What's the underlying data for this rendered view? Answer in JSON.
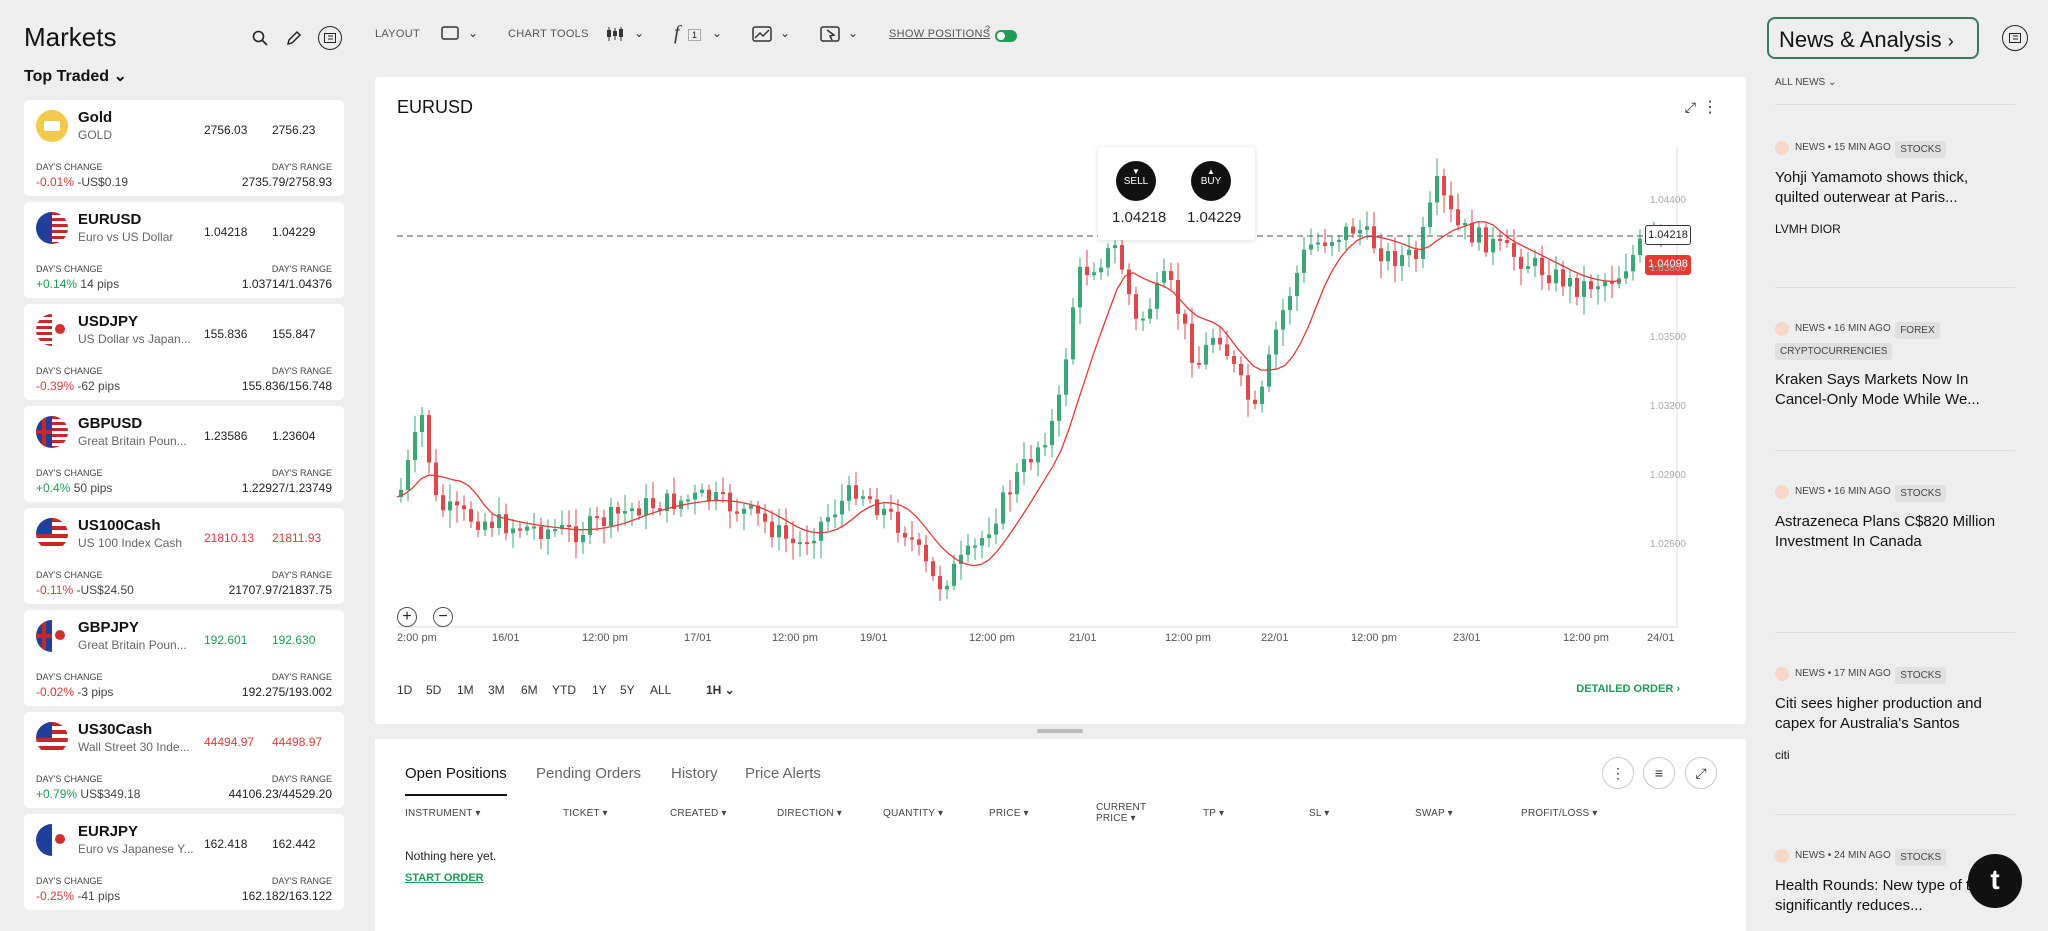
{
  "markets": {
    "title": "Markets",
    "filter": "Top Traded",
    "instruments": [
      {
        "name": "Gold",
        "sub": "GOLD",
        "bid": "2756.03",
        "ask": "2756.23",
        "change_label": "DAY'S CHANGE",
        "change": "-0.01%",
        "change_extra": "-US$0.19",
        "range_label": "DAY'S RANGE",
        "range": "2735.79/2758.93",
        "dir": "down"
      },
      {
        "name": "EURUSD",
        "sub": "Euro vs US Dollar",
        "bid": "1.04218",
        "ask": "1.04229",
        "change_label": "DAY'S CHANGE",
        "change": "+0.14%",
        "change_extra": "14 pips",
        "range_label": "DAY'S RANGE",
        "range": "1.03714/1.04376",
        "dir": "up"
      },
      {
        "name": "USDJPY",
        "sub": "US Dollar vs Japan...",
        "bid": "155.836",
        "ask": "155.847",
        "change_label": "DAY'S CHANGE",
        "change": "-0.39%",
        "change_extra": "-62 pips",
        "range_label": "DAY'S RANGE",
        "range": "155.836/156.748",
        "dir": "down"
      },
      {
        "name": "GBPUSD",
        "sub": "Great Britain Poun...",
        "bid": "1.23586",
        "ask": "1.23604",
        "change_label": "DAY'S CHANGE",
        "change": "+0.4%",
        "change_extra": "50 pips",
        "range_label": "DAY'S RANGE",
        "range": "1.22927/1.23749",
        "dir": "up"
      },
      {
        "name": "US100Cash",
        "sub": "US 100 Index Cash",
        "bid": "21810.13",
        "ask": "21811.93",
        "change_label": "DAY'S CHANGE",
        "change": "-0.11%",
        "change_extra": "-US$24.50",
        "range_label": "DAY'S RANGE",
        "range": "21707.97/21837.75",
        "dir": "down"
      },
      {
        "name": "GBPJPY",
        "sub": "Great Britain Poun...",
        "bid": "192.601",
        "ask": "192.630",
        "change_label": "DAY'S CHANGE",
        "change": "-0.02%",
        "change_extra": "-3 pips",
        "range_label": "DAY'S RANGE",
        "range": "192.275/193.002",
        "dir": "down"
      },
      {
        "name": "US30Cash",
        "sub": "Wall Street 30 Inde...",
        "bid": "44494.97",
        "ask": "44498.97",
        "change_label": "DAY'S CHANGE",
        "change": "+0.79%",
        "change_extra": "US$349.18",
        "range_label": "DAY'S RANGE",
        "range": "44106.23/44529.20",
        "dir": "up"
      },
      {
        "name": "EURJPY",
        "sub": "Euro vs Japanese Y...",
        "bid": "162.418",
        "ask": "162.442",
        "change_label": "DAY'S CHANGE",
        "change": "-0.25%",
        "change_extra": "-41 pips",
        "range_label": "DAY'S RANGE",
        "range": "162.182/163.122",
        "dir": "down"
      }
    ]
  },
  "toolbar": {
    "layout": "LAYOUT",
    "chart_tools": "CHART TOOLS",
    "show_positions": "SHOW POSITIONS",
    "function_count": "1",
    "help": "?"
  },
  "chart": {
    "symbol": "EURUSD",
    "sell_label": "SELL",
    "buy_label": "BUY",
    "sell_price": "1.04218",
    "buy_price": "1.04229",
    "current_tag": "1.04218",
    "ma_tag": "1.04098",
    "price_labels": [
      "1.04400",
      "1.03800",
      "1.03500",
      "1.03200",
      "1.02900",
      "1.02600"
    ],
    "time_labels": [
      "2:00 pm",
      "16/01",
      "12:00 pm",
      "17/01",
      "12:00 pm",
      "19/01",
      "12:00 pm",
      "21/01",
      "12:00 pm",
      "22/01",
      "12:00 pm",
      "23/01",
      "12:00 pm",
      "24/01"
    ],
    "ranges": [
      "1D",
      "5D",
      "1M",
      "3M",
      "6M",
      "YTD",
      "1Y",
      "5Y",
      "ALL"
    ],
    "interval": "1H",
    "detailed_order": "DETAILED ORDER"
  },
  "positions": {
    "tabs": [
      "Open Positions",
      "Pending Orders",
      "History",
      "Price Alerts"
    ],
    "columns": [
      "INSTRUMENT",
      "TICKET",
      "CREATED",
      "DIRECTION",
      "QUANTITY",
      "PRICE",
      "CURRENT PRICE",
      "TP",
      "SL",
      "SWAP",
      "PROFIT/LOSS"
    ],
    "empty": "Nothing here yet.",
    "start_order": "START ORDER"
  },
  "news": {
    "button": "News & Analysis",
    "filter": "ALL NEWS",
    "items": [
      {
        "meta": "NEWS • 15 MIN AGO",
        "tags": [
          "STOCKS"
        ],
        "title": "Yohji Yamamoto shows thick, quilted outerwear at Paris...",
        "source": "LVMH  DIOR"
      },
      {
        "meta": "NEWS • 16 MIN AGO",
        "tags": [
          "FOREX",
          "CRYPTOCURRENCIES"
        ],
        "title": "Kraken Says Markets Now In Cancel-Only Mode While We...",
        "source": ""
      },
      {
        "meta": "NEWS • 16 MIN AGO",
        "tags": [
          "STOCKS"
        ],
        "title": "Astrazeneca Plans C$820 Million Investment In Canada",
        "source": ""
      },
      {
        "meta": "NEWS • 17 MIN AGO",
        "tags": [
          "STOCKS"
        ],
        "title": "Citi sees higher production and capex for Australia's Santos",
        "source": "citi"
      },
      {
        "meta": "NEWS • 24 MIN AGO",
        "tags": [
          "STOCKS"
        ],
        "title": "Health Rounds: New type of thinner significantly reduces...",
        "source": ""
      }
    ]
  },
  "fab": "t",
  "colors": {
    "up": "#3aa876",
    "down": "#e0474c",
    "ma": "#e53935",
    "accent": "#1f9d55"
  }
}
